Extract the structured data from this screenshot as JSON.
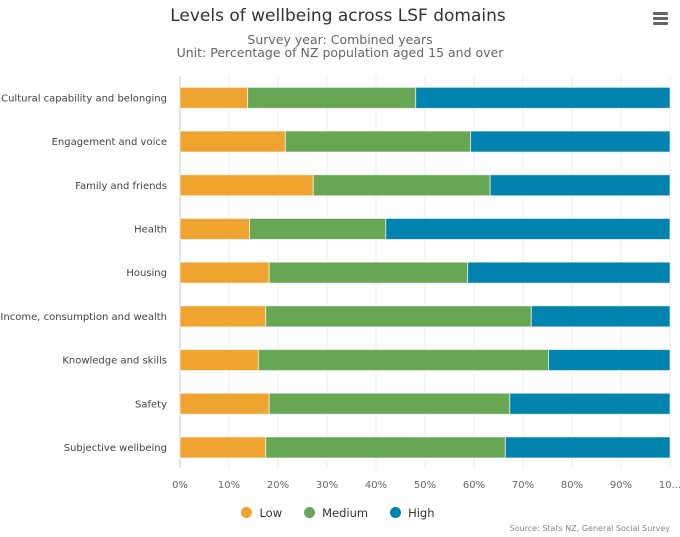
{
  "chart_data": {
    "type": "bar",
    "orientation": "horizontal",
    "stacked": true,
    "title": "Levels of wellbeing across LSF domains",
    "subtitle_lines": [
      "Survey year: Combined years",
      "Unit: Percentage of NZ population aged 15 and over"
    ],
    "categories": [
      "Cultural capability and belonging",
      "Engagement and voice",
      "Family and friends",
      "Health",
      "Housing",
      "Income, consumption and wealth",
      "Knowledge and skills",
      "Safety",
      "Subjective wellbeing"
    ],
    "series": [
      {
        "name": "Low",
        "color": "#f0a430",
        "values": [
          13.8,
          21.5,
          27.2,
          14.2,
          18.2,
          17.5,
          16.0,
          18.2,
          17.5
        ]
      },
      {
        "name": "Medium",
        "color": "#67a754",
        "values": [
          34.3,
          37.8,
          36.1,
          27.8,
          40.5,
          54.2,
          59.2,
          49.1,
          48.9
        ]
      },
      {
        "name": "High",
        "color": "#0083ae",
        "values": [
          51.9,
          40.7,
          36.7,
          58.0,
          41.3,
          28.3,
          24.8,
          32.7,
          33.6
        ]
      }
    ],
    "xlim": [
      0,
      100
    ],
    "xticks": [
      "0%",
      "10%",
      "20%",
      "30%",
      "40%",
      "50%",
      "60%",
      "70%",
      "80%",
      "90%",
      "10..."
    ],
    "grid": true,
    "legend_position": "bottom",
    "source": "Source: Stats NZ, General Social Survey"
  },
  "menu_icon": "hamburger-menu-icon"
}
